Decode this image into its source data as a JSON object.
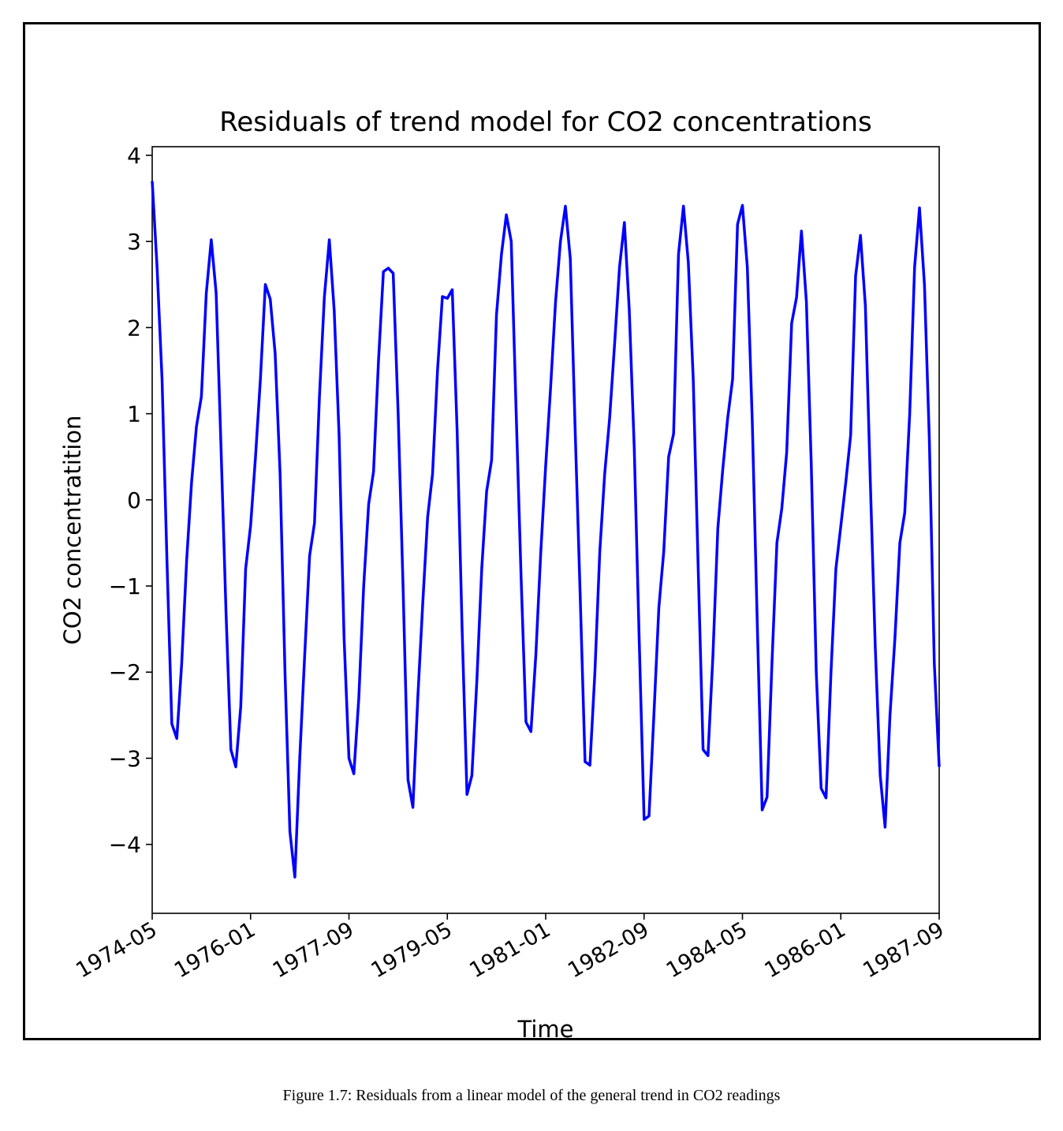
{
  "caption": "Figure 1.7: Residuals from a linear model of the general trend in CO2 readings",
  "chart_data": {
    "type": "line",
    "title": "Residuals of trend model for CO2 concentrations",
    "xlabel": "Time",
    "ylabel": "CO2 concentratition",
    "x_axis": "date (year-month)",
    "xlim": [
      "1974-05",
      "1987-09"
    ],
    "ylim": [
      -4.8,
      4.1
    ],
    "x_ticks": [
      "1974-05",
      "1976-01",
      "1977-09",
      "1979-05",
      "1981-01",
      "1982-09",
      "1984-05",
      "1986-01",
      "1987-09"
    ],
    "y_ticks": [
      -4,
      -3,
      -2,
      -1,
      0,
      1,
      2,
      3,
      4
    ],
    "y_tick_labels": [
      "−4",
      "−3",
      "−2",
      "−1",
      "0",
      "1",
      "2",
      "3",
      "4"
    ],
    "line_color": "#0000ff",
    "grid": false,
    "legend": "none",
    "series": [
      {
        "x": [
          "1974-05",
          "1974-06",
          "1974-07",
          "1974-08",
          "1974-09",
          "1974-10",
          "1974-11",
          "1974-12",
          "1975-01",
          "1975-02",
          "1975-03",
          "1975-04",
          "1975-05",
          "1975-06",
          "1975-07",
          "1975-08",
          "1975-09",
          "1975-10",
          "1975-11",
          "1975-12",
          "1976-01",
          "1976-02",
          "1976-03",
          "1976-04",
          "1976-05",
          "1976-06",
          "1976-07",
          "1976-08",
          "1976-09",
          "1976-10",
          "1976-11",
          "1976-12",
          "1977-01",
          "1977-02",
          "1977-03",
          "1977-04",
          "1977-05",
          "1977-06",
          "1977-07",
          "1977-08",
          "1977-09",
          "1977-10",
          "1977-11",
          "1977-12",
          "1978-01",
          "1978-02",
          "1978-03",
          "1978-04",
          "1978-05",
          "1978-06",
          "1978-07",
          "1978-08",
          "1978-09",
          "1978-10",
          "1978-11",
          "1978-12",
          "1979-01",
          "1979-02",
          "1979-03",
          "1979-04",
          "1979-05",
          "1979-06",
          "1979-07",
          "1979-08",
          "1979-09",
          "1979-10",
          "1979-11",
          "1979-12",
          "1980-01",
          "1980-02",
          "1980-03",
          "1980-04",
          "1980-05",
          "1980-06",
          "1980-07",
          "1980-08",
          "1980-09",
          "1980-10",
          "1980-11",
          "1980-12",
          "1981-01",
          "1981-02",
          "1981-03",
          "1981-04",
          "1981-05",
          "1981-06",
          "1981-07",
          "1981-08",
          "1981-09",
          "1981-10",
          "1981-11",
          "1981-12",
          "1982-01",
          "1982-02",
          "1982-03",
          "1982-04",
          "1982-05",
          "1982-06",
          "1982-07",
          "1982-08",
          "1982-09",
          "1982-10",
          "1982-11",
          "1982-12",
          "1983-01",
          "1983-02",
          "1983-03",
          "1983-04",
          "1983-05",
          "1983-06",
          "1983-07",
          "1983-08",
          "1983-09",
          "1983-10",
          "1983-11",
          "1983-12",
          "1984-01",
          "1984-02",
          "1984-03",
          "1984-04",
          "1984-05",
          "1984-06",
          "1984-07",
          "1984-08",
          "1984-09",
          "1984-10",
          "1984-11",
          "1984-12",
          "1985-01",
          "1985-02",
          "1985-03",
          "1985-04",
          "1985-05",
          "1985-06",
          "1985-07",
          "1985-08",
          "1985-09",
          "1985-10",
          "1985-11",
          "1985-12",
          "1986-01",
          "1986-02",
          "1986-03",
          "1986-04",
          "1986-05",
          "1986-06",
          "1986-07",
          "1986-08",
          "1986-09",
          "1986-10",
          "1986-11",
          "1986-12",
          "1987-01",
          "1987-02",
          "1987-03",
          "1987-04",
          "1987-05",
          "1987-06",
          "1987-07",
          "1987-08",
          "1987-09"
        ],
        "y": [
          3.7,
          2.7,
          1.4,
          -0.7,
          -2.6,
          -2.77,
          -1.9,
          -0.7,
          0.2,
          0.85,
          1.2,
          2.4,
          3.02,
          2.4,
          0.6,
          -1.3,
          -2.9,
          -3.1,
          -2.4,
          -0.8,
          -0.3,
          0.5,
          1.4,
          2.5,
          2.33,
          1.7,
          0.3,
          -2.0,
          -3.85,
          -4.38,
          -3.0,
          -1.8,
          -0.65,
          -0.27,
          1.2,
          2.35,
          3.02,
          2.2,
          0.75,
          -1.6,
          -3.0,
          -3.18,
          -2.3,
          -1.0,
          -0.05,
          0.33,
          1.6,
          2.65,
          2.69,
          2.63,
          1.0,
          -1.0,
          -3.25,
          -3.57,
          -2.3,
          -1.2,
          -0.2,
          0.3,
          1.5,
          2.36,
          2.34,
          2.44,
          0.8,
          -1.5,
          -3.42,
          -3.2,
          -2.1,
          -0.8,
          0.1,
          0.46,
          2.15,
          2.85,
          3.31,
          3.0,
          1.0,
          -0.9,
          -2.58,
          -2.69,
          -1.8,
          -0.6,
          0.4,
          1.3,
          2.3,
          3.0,
          3.41,
          2.8,
          0.8,
          -1.1,
          -3.04,
          -3.08,
          -2.0,
          -0.6,
          0.3,
          0.95,
          1.8,
          2.7,
          3.22,
          2.2,
          0.6,
          -1.6,
          -3.71,
          -3.67,
          -2.5,
          -1.25,
          -0.6,
          0.5,
          0.77,
          2.85,
          3.41,
          2.75,
          1.4,
          -0.8,
          -2.9,
          -2.97,
          -1.8,
          -0.33,
          0.35,
          0.95,
          1.4,
          3.2,
          3.42,
          2.7,
          0.9,
          -1.4,
          -3.6,
          -3.45,
          -1.9,
          -0.5,
          -0.1,
          0.55,
          2.05,
          2.35,
          3.12,
          2.3,
          0.4,
          -2.0,
          -3.35,
          -3.46,
          -2.0,
          -0.8,
          -0.3,
          0.2,
          0.75,
          2.6,
          3.07,
          2.25,
          0.2,
          -1.7,
          -3.2,
          -3.8,
          -2.5,
          -1.6,
          -0.5,
          -0.15,
          1.0,
          2.7,
          3.39,
          2.5,
          0.7,
          -1.9,
          -3.1
        ]
      }
    ]
  }
}
